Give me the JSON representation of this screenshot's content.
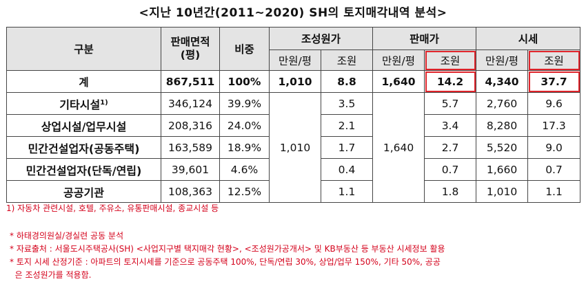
{
  "title": "<지난 10년간(2011~2020) SH의 토지매각내역 분석>",
  "headers": {
    "category": "구분",
    "area": "판매면적\n(평)",
    "share": "비중",
    "cost": "조성원가",
    "sale": "판매가",
    "market": "시세",
    "unit_per": "만원/평",
    "unit_trillion": "조원"
  },
  "total_row": {
    "label": "계",
    "area": "867,511",
    "share": "100%",
    "cost_per": "1,010",
    "cost_total": "8.8",
    "sale_per": "1,640",
    "sale_total": "14.2",
    "market_per": "4,340",
    "market_total": "37.7"
  },
  "merged": {
    "cost_per": "1,010",
    "sale_per": "1,640"
  },
  "rows": [
    {
      "label": "기타시설",
      "sup": "1)",
      "area": "346,124",
      "share": "39.9%",
      "cost_total": "3.5",
      "sale_total": "5.7",
      "market_per": "2,760",
      "market_total": "9.6"
    },
    {
      "label": "상업시설/업무시설",
      "sup": "",
      "area": "208,316",
      "share": "24.0%",
      "cost_total": "2.1",
      "sale_total": "3.4",
      "market_per": "8,280",
      "market_total": "17.3"
    },
    {
      "label": "민간건설업자(공동주택)",
      "sup": "",
      "area": "163,589",
      "share": "18.9%",
      "cost_total": "1.7",
      "sale_total": "2.7",
      "market_per": "5,520",
      "market_total": "9.0"
    },
    {
      "label": "민간건설업자(단독/연립)",
      "sup": "",
      "area": "39,601",
      "share": "4.6%",
      "cost_total": "0.4",
      "sale_total": "0.7",
      "market_per": "1,660",
      "market_total": "0.7"
    },
    {
      "label": "공공기관",
      "sup": "",
      "area": "108,363",
      "share": "12.5%",
      "cost_total": "1.1",
      "sale_total": "1.8",
      "market_per": "1,010",
      "market_total": "1.1"
    }
  ],
  "footnote": "1) 자동차 관련시설, 호텔, 주유소, 유통판매시설, 종교시설 등",
  "notes": [
    "* 하태경의원실/경실련 공동 분석",
    "* 자료출처 : 서울도시주택공사(SH) <사업지구별 택지매각 현황>, <조성원가공개서> 및 KB부동산 등 부동산 시세정보 활용",
    "* 토지 시세 산정기준 : 아파트의 토지시세를 기준으로 공동주택 100%, 단독/연립 30%, 상업/업무 150%, 기타 50%, 공공",
    "  은 조성원가를 적용함."
  ],
  "colors": {
    "highlight": "#e0242b",
    "note_text": "#d4001a",
    "header_bg": "#e4e4e4"
  }
}
